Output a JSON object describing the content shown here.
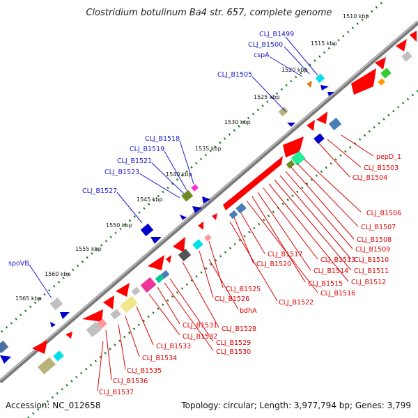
{
  "title": "Clostridium botulinum Ba4 str. 657, complete genome",
  "footer": {
    "accession": "Accession: NC_012658",
    "topology": "Topology: circular; Length: 3,977,794 bp; Genes: 3,799"
  },
  "colors": {
    "backbone": "#8a8a8a",
    "tick_dots": "#1f7a1f",
    "forward_label": "#1a1ad0",
    "reverse_label": "#dd0000"
  },
  "ticks": [
    {
      "label": "1510 kbp"
    },
    {
      "label": "1515 kbp"
    },
    {
      "label": "1520 kbp"
    },
    {
      "label": "1525 kbp"
    },
    {
      "label": "1530 kbp"
    },
    {
      "label": "1535 kbp"
    },
    {
      "label": "1540 kbp"
    },
    {
      "label": "1545 kbp"
    },
    {
      "label": "1550 kbp"
    },
    {
      "label": "1555 kbp"
    },
    {
      "label": "1560 kbp"
    },
    {
      "label": "1565 kbp"
    }
  ],
  "forward_labels": [
    {
      "text": "CLJ_B1499"
    },
    {
      "text": "CLJ_B1500"
    },
    {
      "text": "cspA"
    },
    {
      "text": "CLJ_B1505"
    },
    {
      "text": "CLJ_B1518"
    },
    {
      "text": "CLJ_B1519"
    },
    {
      "text": "CLJ_B1521"
    },
    {
      "text": "CLJ_B1523"
    },
    {
      "text": "CLJ_B1527"
    },
    {
      "text": "spoVB"
    }
  ],
  "reverse_labels": [
    {
      "text": "pepD_1"
    },
    {
      "text": "CLJ_B1503"
    },
    {
      "text": "CLJ_B1504"
    },
    {
      "text": "CLJ_B1506"
    },
    {
      "text": "CLJ_B1507"
    },
    {
      "text": "CLJ_B1508"
    },
    {
      "text": "CLJ_B1509"
    },
    {
      "text": "CLJ_B1510"
    },
    {
      "text": "CLJ_B1511"
    },
    {
      "text": "CLJ_B1512"
    },
    {
      "text": "CLJ_B1513"
    },
    {
      "text": "CLJ_B1514"
    },
    {
      "text": "CLJ_B1515"
    },
    {
      "text": "CLJ_B1516"
    },
    {
      "text": "CLJ_B1517"
    },
    {
      "text": "CLJ_B1520"
    },
    {
      "text": "CLJ_B1522"
    },
    {
      "text": "CLJ_B1525"
    },
    {
      "text": "CLJ_B1526"
    },
    {
      "text": "bdhA"
    },
    {
      "text": "CLJ_B1528"
    },
    {
      "text": "CLJ_B1529"
    },
    {
      "text": "CLJ_B1530"
    },
    {
      "text": "CLJ_B1531"
    },
    {
      "text": "CLJ_B1532"
    },
    {
      "text": "CLJ_B1533"
    },
    {
      "text": "CLJ_B1534"
    },
    {
      "text": "CLJ_B1535"
    },
    {
      "text": "CLJ_B1536"
    },
    {
      "text": "CLJ_B1537"
    }
  ]
}
